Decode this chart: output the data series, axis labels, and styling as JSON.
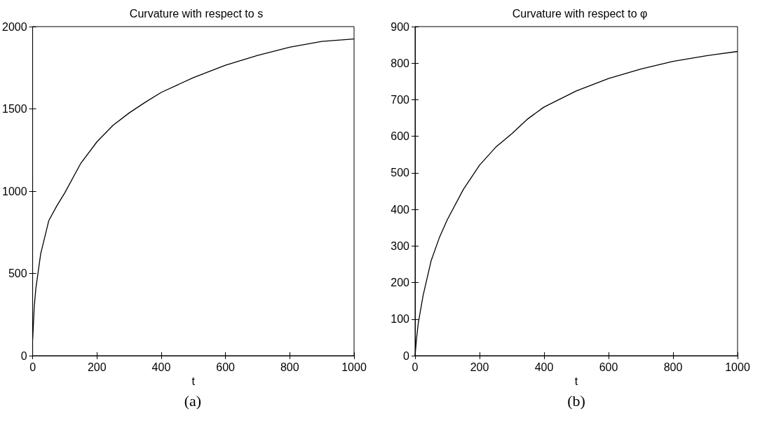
{
  "chart_data": [
    {
      "type": "line",
      "title": "Curvature with respect to s",
      "xlabel": "t",
      "annotations": [
        "(a)"
      ],
      "x": [
        0,
        5,
        10,
        25,
        50,
        75,
        100,
        150,
        200,
        250,
        300,
        350,
        400,
        500,
        600,
        700,
        800,
        900,
        1000
      ],
      "series": [
        {
          "color": "#000000",
          "values": [
            100,
            300,
            410,
            620,
            820,
            910,
            990,
            1170,
            1300,
            1400,
            1475,
            1540,
            1600,
            1690,
            1765,
            1825,
            1875,
            1910,
            1925
          ]
        }
      ],
      "xlim": [
        0,
        1000
      ],
      "xticks": [
        0,
        200,
        400,
        600,
        800,
        1000
      ],
      "ylim": [
        0,
        2000
      ],
      "yticks": [
        0,
        500,
        1000,
        1500,
        2000
      ],
      "grid": false,
      "marker": "none",
      "line_style": "solid"
    },
    {
      "type": "line",
      "title": "Curvature with respect to φ",
      "xlabel": "t",
      "annotations": [
        "(b)"
      ],
      "x": [
        0,
        5,
        10,
        25,
        50,
        75,
        100,
        150,
        200,
        250,
        300,
        350,
        400,
        500,
        600,
        700,
        800,
        900,
        1000
      ],
      "series": [
        {
          "color": "#000000",
          "values": [
            0,
            50,
            89,
            165,
            260,
            322,
            372,
            455,
            521,
            570,
            607,
            648,
            680,
            724,
            758,
            784,
            805,
            820,
            832
          ]
        }
      ],
      "xlim": [
        0,
        1000
      ],
      "xticks": [
        0,
        200,
        400,
        600,
        800,
        1000
      ],
      "ylim": [
        0,
        900
      ],
      "yticks": [
        0,
        100,
        200,
        300,
        400,
        500,
        600,
        700,
        800,
        900
      ],
      "grid": false,
      "marker": "none",
      "line_style": "solid"
    }
  ]
}
